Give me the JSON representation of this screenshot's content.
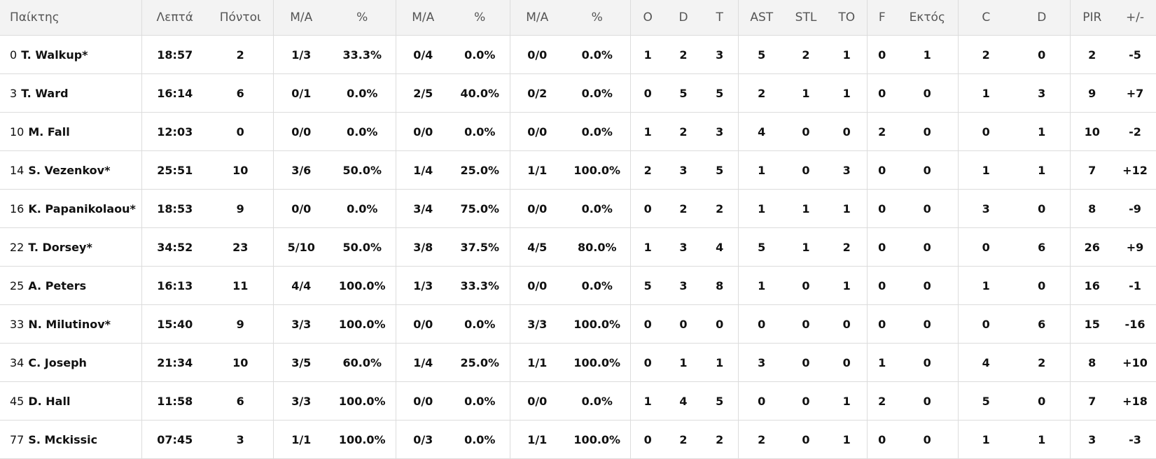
{
  "headers": [
    "Παίκτης",
    "Λεπτά",
    "Πόντοι",
    "Μ/Α",
    "%",
    "Μ/Α",
    "%",
    "Μ/Α",
    "%",
    "O",
    "D",
    "T",
    "AST",
    "STL",
    "TO",
    "F",
    "Εκτός",
    "C",
    "D",
    "PIR",
    "+/-"
  ],
  "players": [
    {
      "num": "0",
      "name": "T. Walkup*",
      "stats": [
        "18:57",
        "2",
        "1/3",
        "33.3%",
        "0/4",
        "0.0%",
        "0/0",
        "0.0%",
        "1",
        "2",
        "3",
        "5",
        "2",
        "1",
        "0",
        "1",
        "2",
        "0",
        "2",
        "-5"
      ]
    },
    {
      "num": "3",
      "name": "T. Ward",
      "stats": [
        "16:14",
        "6",
        "0/1",
        "0.0%",
        "2/5",
        "40.0%",
        "0/2",
        "0.0%",
        "0",
        "5",
        "5",
        "2",
        "1",
        "1",
        "0",
        "0",
        "1",
        "3",
        "9",
        "+7"
      ]
    },
    {
      "num": "10",
      "name": "M. Fall",
      "stats": [
        "12:03",
        "0",
        "0/0",
        "0.0%",
        "0/0",
        "0.0%",
        "0/0",
        "0.0%",
        "1",
        "2",
        "3",
        "4",
        "0",
        "0",
        "2",
        "0",
        "0",
        "1",
        "10",
        "-2"
      ]
    },
    {
      "num": "14",
      "name": "S. Vezenkov*",
      "stats": [
        "25:51",
        "10",
        "3/6",
        "50.0%",
        "1/4",
        "25.0%",
        "1/1",
        "100.0%",
        "2",
        "3",
        "5",
        "1",
        "0",
        "3",
        "0",
        "0",
        "1",
        "1",
        "7",
        "+12"
      ]
    },
    {
      "num": "16",
      "name": "K. Papanikolaou*",
      "stats": [
        "18:53",
        "9",
        "0/0",
        "0.0%",
        "3/4",
        "75.0%",
        "0/0",
        "0.0%",
        "0",
        "2",
        "2",
        "1",
        "1",
        "1",
        "0",
        "0",
        "3",
        "0",
        "8",
        "-9"
      ]
    },
    {
      "num": "22",
      "name": "T. Dorsey*",
      "stats": [
        "34:52",
        "23",
        "5/10",
        "50.0%",
        "3/8",
        "37.5%",
        "4/5",
        "80.0%",
        "1",
        "3",
        "4",
        "5",
        "1",
        "2",
        "0",
        "0",
        "0",
        "6",
        "26",
        "+9"
      ]
    },
    {
      "num": "25",
      "name": "A. Peters",
      "stats": [
        "16:13",
        "11",
        "4/4",
        "100.0%",
        "1/3",
        "33.3%",
        "0/0",
        "0.0%",
        "5",
        "3",
        "8",
        "1",
        "0",
        "1",
        "0",
        "0",
        "1",
        "0",
        "16",
        "-1"
      ]
    },
    {
      "num": "33",
      "name": "N. Milutinov*",
      "stats": [
        "15:40",
        "9",
        "3/3",
        "100.0%",
        "0/0",
        "0.0%",
        "3/3",
        "100.0%",
        "0",
        "0",
        "0",
        "0",
        "0",
        "0",
        "0",
        "0",
        "0",
        "6",
        "15",
        "-16"
      ]
    },
    {
      "num": "34",
      "name": "C. Joseph",
      "stats": [
        "21:34",
        "10",
        "3/5",
        "60.0%",
        "1/4",
        "25.0%",
        "1/1",
        "100.0%",
        "0",
        "1",
        "1",
        "3",
        "0",
        "0",
        "1",
        "0",
        "4",
        "2",
        "8",
        "+10"
      ]
    },
    {
      "num": "45",
      "name": "D. Hall",
      "stats": [
        "11:58",
        "6",
        "3/3",
        "100.0%",
        "0/0",
        "0.0%",
        "0/0",
        "0.0%",
        "1",
        "4",
        "5",
        "0",
        "0",
        "1",
        "2",
        "0",
        "5",
        "0",
        "7",
        "+18"
      ]
    },
    {
      "num": "77",
      "name": "S. Mckissic",
      "stats": [
        "07:45",
        "3",
        "1/1",
        "100.0%",
        "0/3",
        "0.0%",
        "1/1",
        "100.0%",
        "0",
        "2",
        "2",
        "2",
        "0",
        "1",
        "0",
        "0",
        "1",
        "1",
        "3",
        "-3"
      ]
    }
  ]
}
